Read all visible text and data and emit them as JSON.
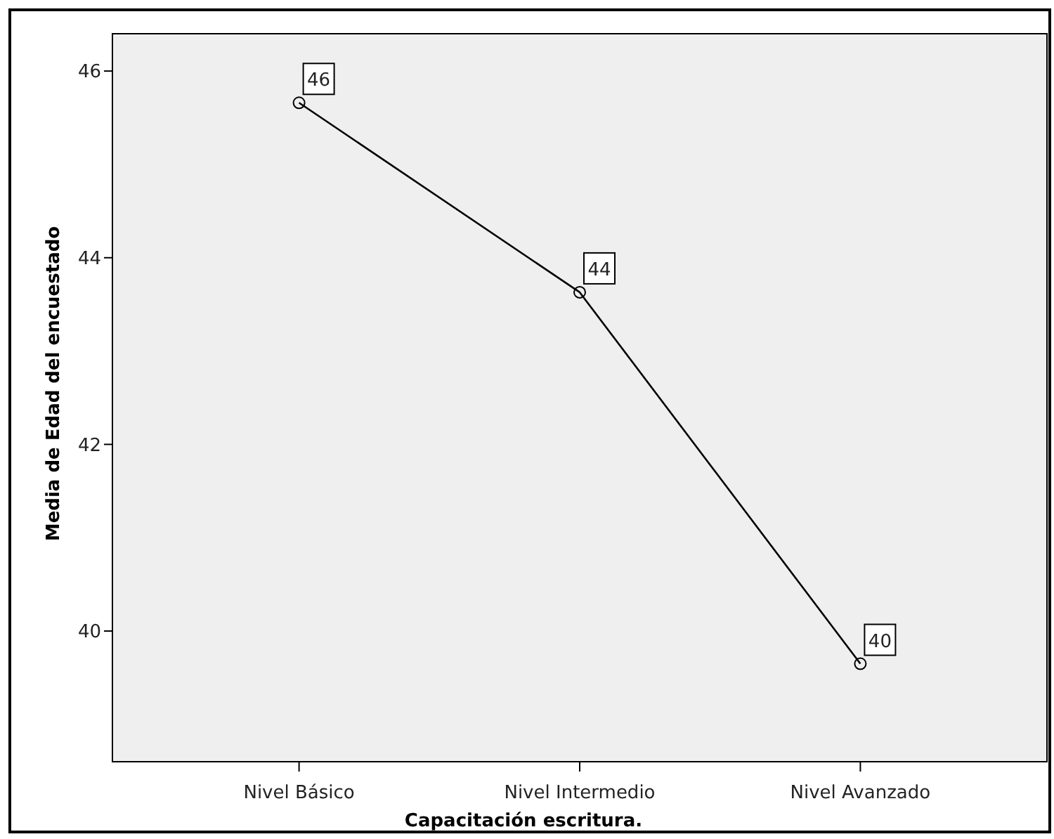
{
  "chart_data": {
    "type": "line",
    "xlabel": "Capacitación escritura.",
    "ylabel": "Media de Edad del encuestado",
    "categories": [
      "Nivel Básico",
      "Nivel Intermedio",
      "Nivel Avanzado"
    ],
    "series": [
      {
        "color": "#000000",
        "values": [
          45.66,
          43.63,
          39.65
        ],
        "value_labels": [
          "46",
          "44",
          "40"
        ]
      }
    ],
    "ylim": [
      38.6,
      46.4
    ],
    "yticks": [
      40,
      42,
      44,
      46
    ],
    "marker": "circle",
    "line_style": "solid"
  }
}
